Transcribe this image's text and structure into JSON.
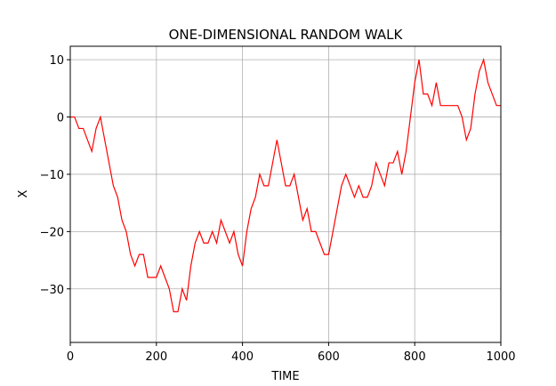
{
  "chart_data": {
    "type": "line",
    "title": "ONE-DIMENSIONAL RANDOM WALK",
    "xlabel": "TIME",
    "ylabel": "X",
    "x": [
      0,
      10,
      20,
      30,
      40,
      50,
      60,
      70,
      80,
      90,
      100,
      110,
      120,
      130,
      140,
      150,
      160,
      170,
      180,
      190,
      200,
      210,
      220,
      230,
      240,
      250,
      260,
      270,
      280,
      290,
      300,
      310,
      320,
      330,
      340,
      350,
      360,
      370,
      380,
      390,
      400,
      410,
      420,
      430,
      440,
      450,
      460,
      470,
      480,
      490,
      500,
      510,
      520,
      530,
      540,
      550,
      560,
      570,
      580,
      590,
      600,
      610,
      620,
      630,
      640,
      650,
      660,
      670,
      680,
      690,
      700,
      710,
      720,
      730,
      740,
      750,
      760,
      770,
      780,
      790,
      800,
      810,
      820,
      830,
      840,
      850,
      860,
      870,
      880,
      890,
      900,
      910,
      920,
      930,
      940,
      950,
      960,
      970,
      980,
      990,
      1000
    ],
    "series": [
      {
        "name": "X",
        "color": "#ff0000",
        "values": [
          0,
          0,
          -2,
          -2,
          -4,
          -6,
          -2,
          0,
          -4,
          -8,
          -12,
          -14,
          -18,
          -20,
          -24,
          -26,
          -24,
          -24,
          -28,
          -28,
          -28,
          -26,
          -28,
          -30,
          -34,
          -34,
          -30,
          -32,
          -26,
          -22,
          -20,
          -22,
          -22,
          -20,
          -22,
          -18,
          -20,
          -22,
          -20,
          -24,
          -26,
          -20,
          -16,
          -14,
          -10,
          -12,
          -12,
          -8,
          -4,
          -8,
          -12,
          -12,
          -10,
          -14,
          -18,
          -16,
          -20,
          -20,
          -22,
          -24,
          -24,
          -20,
          -16,
          -12,
          -10,
          -12,
          -14,
          -12,
          -14,
          -14,
          -12,
          -8,
          -10,
          -12,
          -8,
          -8,
          -6,
          -10,
          -6,
          0,
          6,
          10,
          4,
          4,
          2,
          6,
          2,
          2,
          2,
          2,
          2,
          0,
          -4,
          -2,
          4,
          8,
          10,
          6,
          4,
          2,
          2
        ]
      }
    ],
    "xlim": [
      0,
      1000
    ],
    "xticks": [
      0,
      200,
      400,
      600,
      800,
      1000
    ],
    "ylim": [
      -39.35,
      12.35
    ],
    "yticks": [
      {
        "value": -30,
        "label": "−30"
      },
      {
        "value": -20,
        "label": "−20"
      },
      {
        "value": -10,
        "label": "−10"
      },
      0,
      10
    ],
    "grid": true
  }
}
